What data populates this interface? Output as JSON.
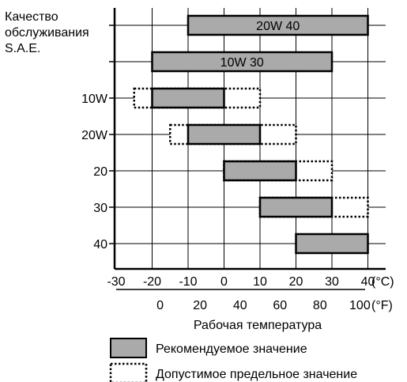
{
  "chart_data": {
    "type": "range-bar",
    "y_title_lines": [
      "Качество",
      "обслуживания",
      "S.A.E."
    ],
    "xlabel": "Рабочая температура",
    "x_unit_c": "(°C)",
    "x_unit_f": "(°F)",
    "x_ticks_c": [
      -30,
      -20,
      -10,
      0,
      10,
      20,
      30,
      40
    ],
    "x_ticks_f": [
      0,
      20,
      40,
      60,
      80,
      100
    ],
    "xlim_c": [
      -30,
      45
    ],
    "grid": true,
    "rows": [
      {
        "label": "",
        "bar_label": "20W 40",
        "recommended": [
          -10,
          40
        ],
        "permissible": null
      },
      {
        "label": "",
        "bar_label": "10W 30",
        "recommended": [
          -20,
          30
        ],
        "permissible": null
      },
      {
        "label": "10W",
        "bar_label": "",
        "recommended": [
          -20,
          0
        ],
        "permissible": [
          -25,
          10
        ]
      },
      {
        "label": "20W",
        "bar_label": "",
        "recommended": [
          -10,
          10
        ],
        "permissible": [
          -15,
          20
        ]
      },
      {
        "label": "20",
        "bar_label": "",
        "recommended": [
          0,
          20
        ],
        "permissible": [
          0,
          30
        ]
      },
      {
        "label": "30",
        "bar_label": "",
        "recommended": [
          10,
          30
        ],
        "permissible": [
          10,
          40
        ]
      },
      {
        "label": "40",
        "bar_label": "",
        "recommended": [
          20,
          40
        ],
        "permissible": null
      }
    ],
    "legend": {
      "recommended": "Рекомендуемое значение",
      "permissible": "Допустимое предельное значение"
    },
    "colors": {
      "bar_fill": "#aaaaaa",
      "line": "#000000"
    }
  }
}
